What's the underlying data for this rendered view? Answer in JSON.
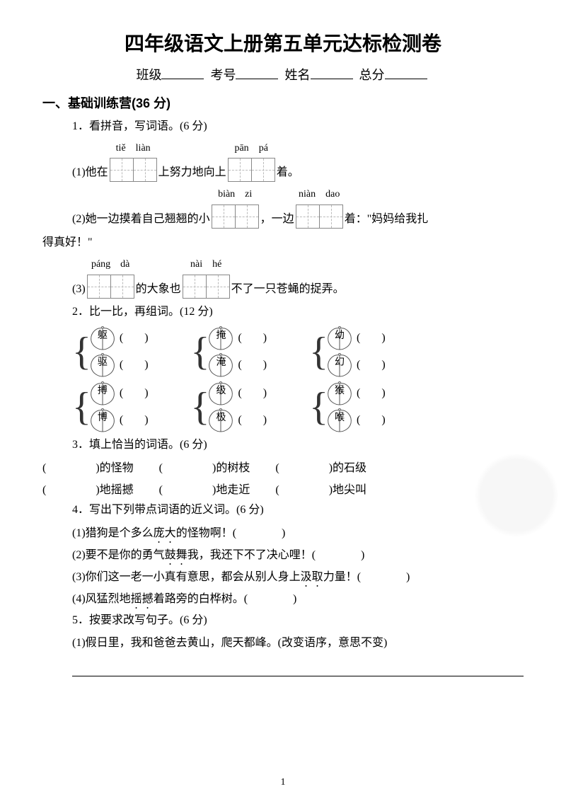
{
  "title": "四年级语文上册第五单元达标检测卷",
  "info": {
    "class": "班级",
    "exam_no": "考号",
    "name": "姓名",
    "total": "总分"
  },
  "section1": {
    "heading": "一、基础训练营(36 分)",
    "q1": {
      "label": "1．看拼音，写词语。(6 分)",
      "line1": {
        "pre": "(1)他在",
        "py1": [
          "tiě",
          "liàn"
        ],
        "mid": "上努力地向上",
        "py2": [
          "pān",
          "pá"
        ],
        "post": "着。"
      },
      "line2": {
        "pre": "(2)她一边摸着自己翘翘的小",
        "py1": [
          "biàn",
          "zi"
        ],
        "mid": "，一边",
        "py2": [
          "niàn",
          "dao"
        ],
        "post": "着：\"妈妈给我扎"
      },
      "line2b": "得真好！\"",
      "line3": {
        "pre": "(3)",
        "py1": [
          "páng",
          "dà"
        ],
        "mid": "的大象也",
        "py2": [
          "nài",
          "hé"
        ],
        "post": "不了一只苍蝇的捉弄。"
      }
    },
    "q2": {
      "label": "2．比一比，再组词。(12 分)",
      "pairs": [
        [
          "躯",
          "驱"
        ],
        [
          "掩",
          "淹"
        ],
        [
          "幼",
          "幻"
        ],
        [
          "搏",
          "博"
        ],
        [
          "级",
          "极"
        ],
        [
          "猴",
          "喉"
        ]
      ]
    },
    "q3": {
      "label": "3．填上恰当的词语。(6 分)",
      "row1": [
        "的怪物",
        "的树枝",
        "的石级"
      ],
      "row2": [
        "地摇撼",
        "地走近",
        "地尖叫"
      ]
    },
    "q4": {
      "label": "4．写出下列带点词语的近义词。(6 分)",
      "items": [
        {
          "t": "(1)猎狗是个多么",
          "d": "庞大",
          "a": "的怪物啊！(　　　　)"
        },
        {
          "t": "(2)要不是你的勇气",
          "d": "鼓舞",
          "a": "我，我还下不了决心哩！(　　　　)"
        },
        {
          "t": "(3)你们这一老一小真有意思，都会从别人身上",
          "d": "汲取",
          "a": "力量！(　　　　)"
        },
        {
          "t": "(4)风猛烈地",
          "d": "摇撼",
          "a": "着路旁的白桦树。(　　　　)"
        }
      ]
    },
    "q5": {
      "label": "5．按要求改写句子。(6 分)",
      "item1": "(1)假日里，我和爸爸去黄山，爬天都峰。(改变语序，意思不变)"
    }
  },
  "page": "1"
}
